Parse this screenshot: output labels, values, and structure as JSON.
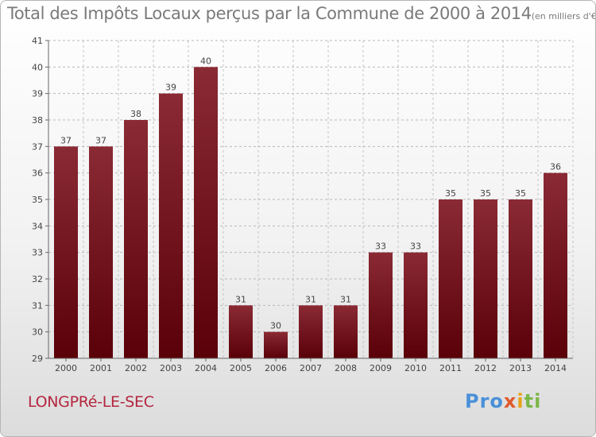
{
  "header": {
    "title": "Total des Impôts Locaux perçus par la Commune de 2000 à 2014",
    "unit": "(en milliers d'€)"
  },
  "footer": {
    "commune": "LONGPRé-LE-SEC",
    "logo": {
      "p1": "Pro",
      "p2": "x",
      "p3": "i",
      "p4": "ti"
    }
  },
  "chart_data": {
    "type": "bar",
    "title": "Total des Impôts Locaux perçus par la Commune de 2000 à 2014",
    "xlabel": "",
    "ylabel": "",
    "unit": "(en milliers d'€)",
    "categories": [
      "2000",
      "2001",
      "2002",
      "2003",
      "2004",
      "2005",
      "2006",
      "2007",
      "2008",
      "2009",
      "2010",
      "2011",
      "2012",
      "2013",
      "2014"
    ],
    "values": [
      37,
      37,
      38,
      39,
      40,
      31,
      30,
      31,
      31,
      33,
      33,
      35,
      35,
      35,
      36
    ],
    "ylim": [
      29,
      41
    ],
    "yticks": [
      29,
      30,
      31,
      32,
      33,
      34,
      35,
      36,
      37,
      38,
      39,
      40,
      41
    ],
    "grid": true,
    "bar_color": "#6e1019"
  }
}
